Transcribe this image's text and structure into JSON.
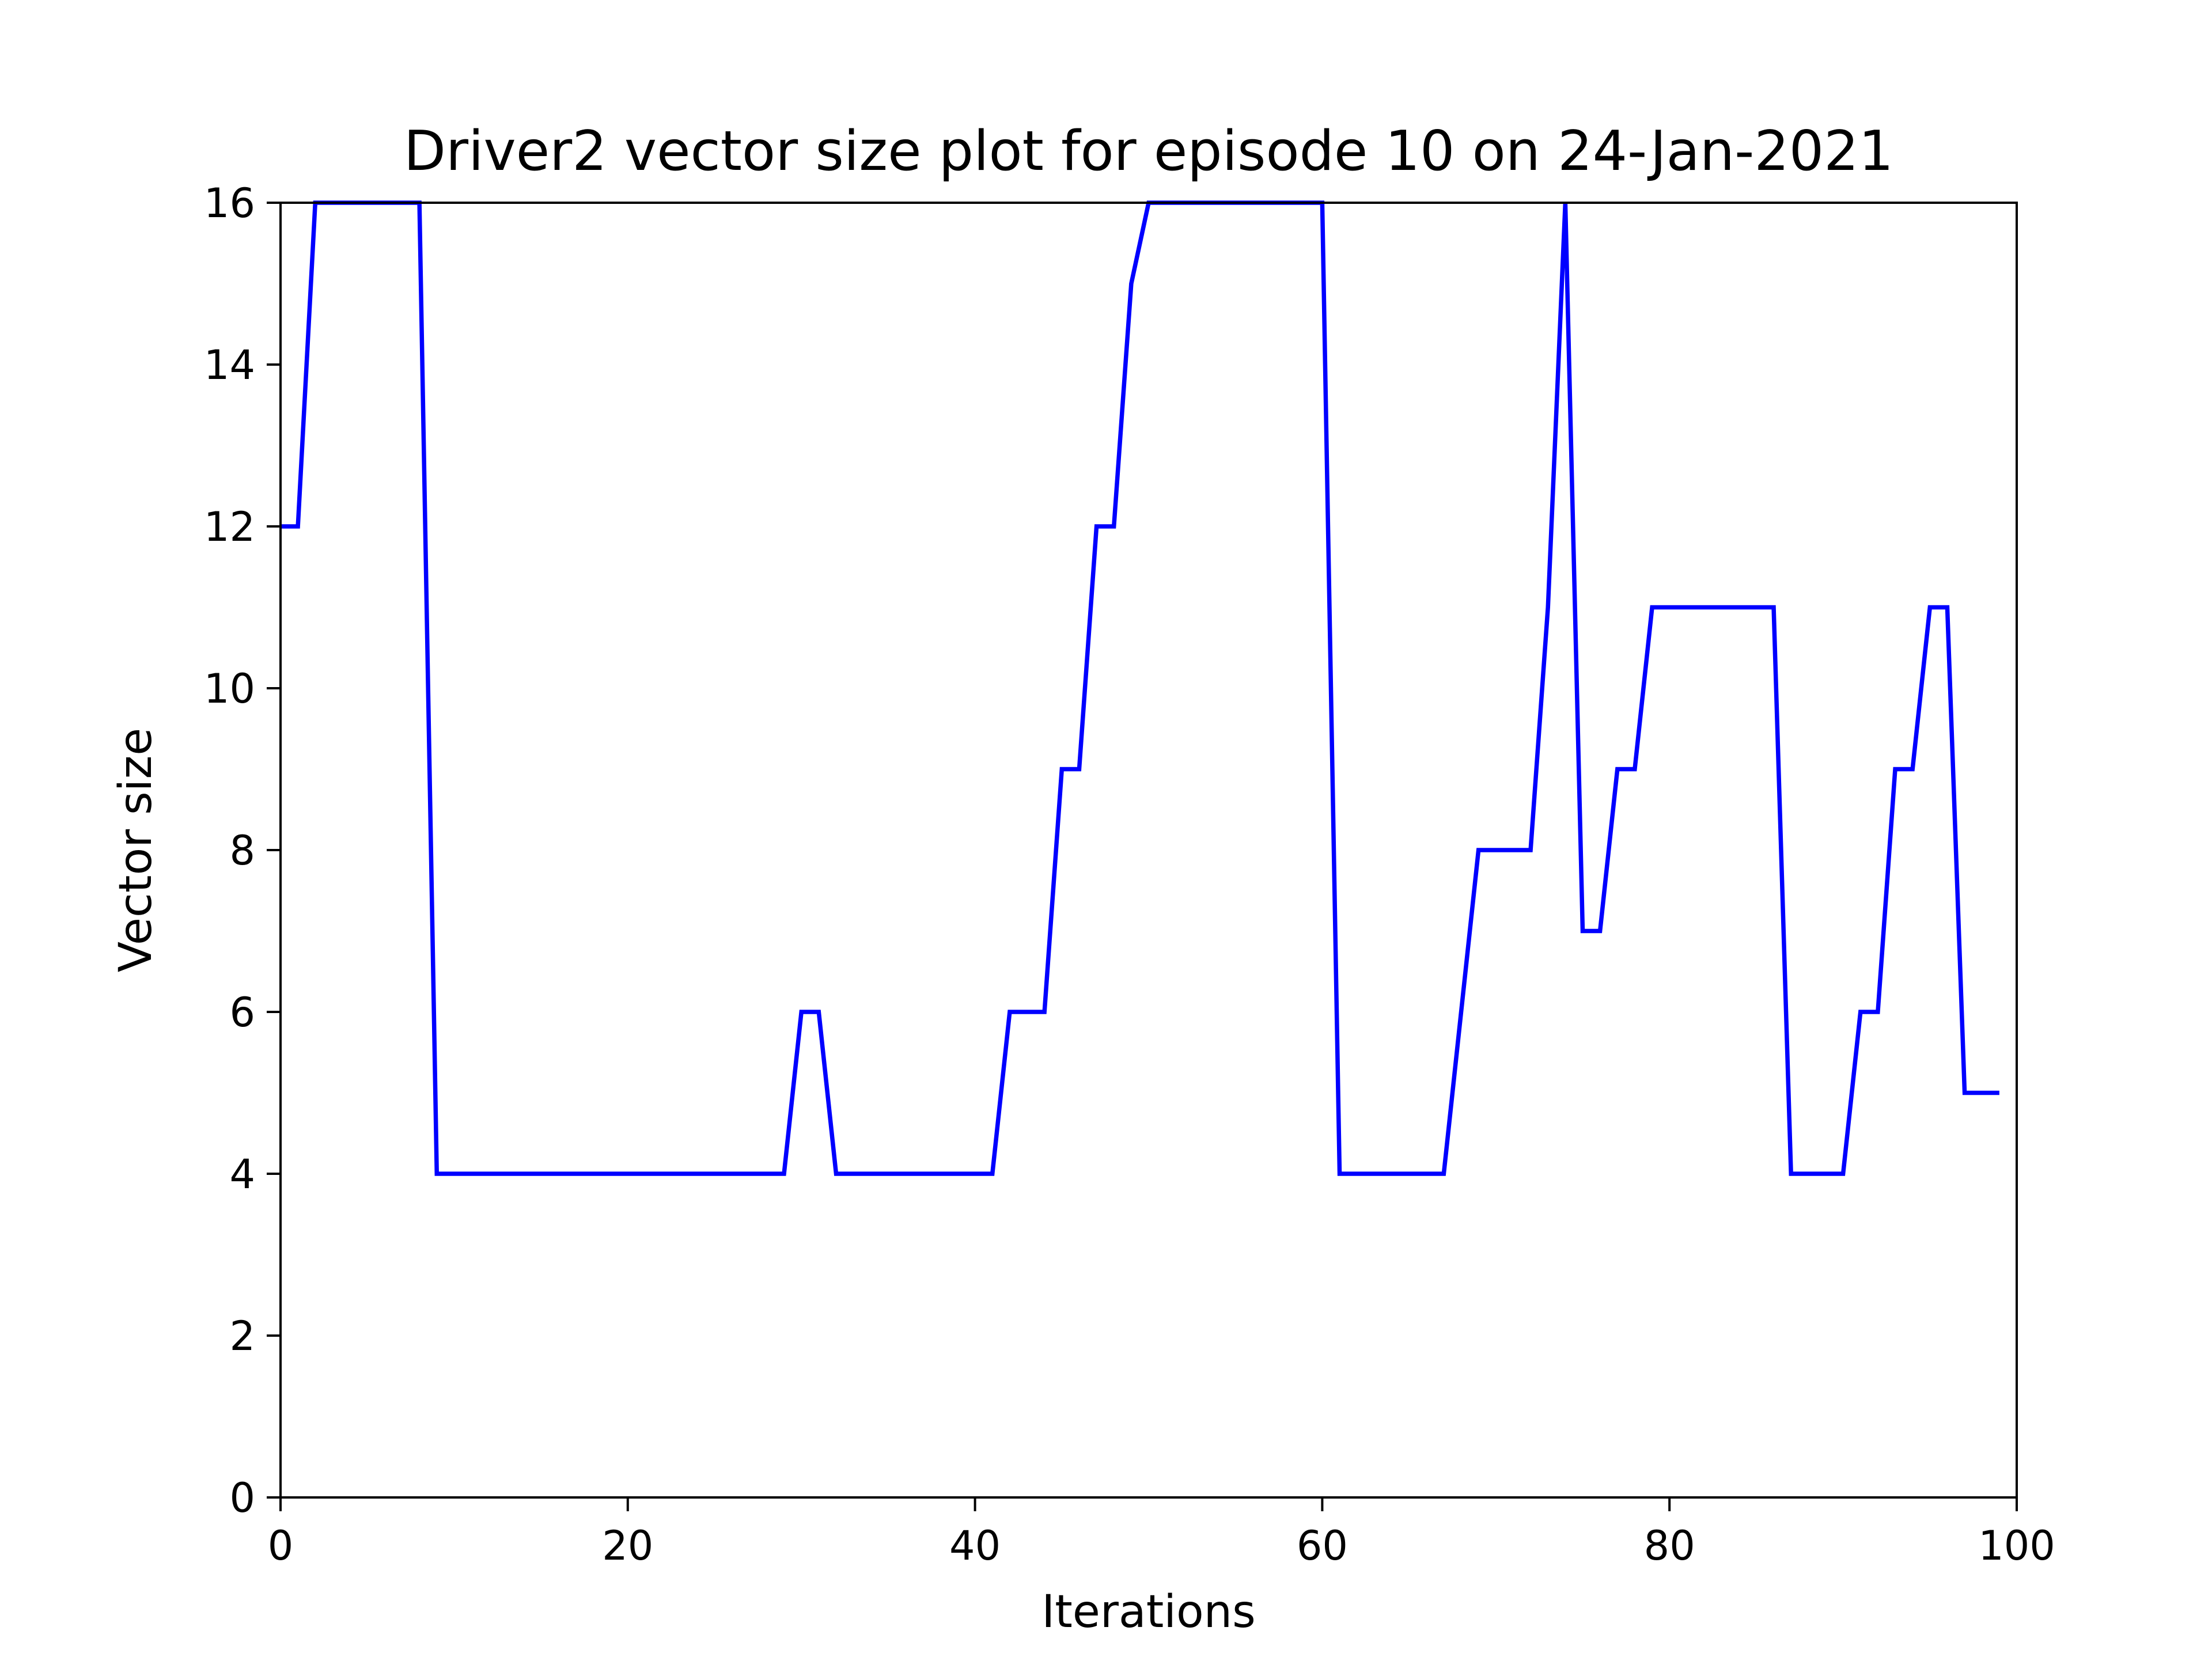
{
  "chart_data": {
    "type": "line",
    "title": "Driver2 vector size plot for episode 10 on 24-Jan-2021",
    "xlabel": "Iterations",
    "ylabel": "Vector size",
    "xlim": [
      0,
      100
    ],
    "ylim": [
      0,
      16
    ],
    "xticks": [
      0,
      20,
      40,
      60,
      80,
      100
    ],
    "yticks": [
      0,
      2,
      4,
      6,
      8,
      10,
      12,
      14,
      16
    ],
    "grid": false,
    "legend": "none",
    "line_color": "#0000ff",
    "series": [
      {
        "x": [
          0,
          1,
          2,
          3,
          4,
          5,
          6,
          7,
          8,
          9,
          10,
          11,
          12,
          13,
          14,
          15,
          16,
          17,
          18,
          19,
          20,
          21,
          22,
          23,
          24,
          25,
          26,
          27,
          28,
          29,
          30,
          31,
          32,
          33,
          34,
          35,
          36,
          37,
          38,
          39,
          40,
          41,
          42,
          43,
          44,
          45,
          46,
          47,
          48,
          49,
          50,
          51,
          52,
          53,
          54,
          55,
          56,
          57,
          58,
          59,
          60,
          61,
          62,
          63,
          64,
          65,
          66,
          67,
          68,
          69,
          70,
          71,
          72,
          73,
          74,
          75,
          76,
          77,
          78,
          79,
          80,
          81,
          82,
          83,
          84,
          85,
          86,
          87,
          88,
          89,
          90,
          91,
          92,
          93,
          94,
          95,
          96,
          97,
          98,
          99
        ],
        "values": [
          12,
          12,
          16,
          16,
          16,
          16,
          16,
          16,
          16,
          4,
          4,
          4,
          4,
          4,
          4,
          4,
          4,
          4,
          4,
          4,
          4,
          4,
          4,
          4,
          4,
          4,
          4,
          4,
          4,
          4,
          6,
          6,
          4,
          4,
          4,
          4,
          4,
          4,
          4,
          4,
          4,
          4,
          6,
          6,
          6,
          9,
          9,
          12,
          12,
          15,
          16,
          16,
          16,
          16,
          16,
          16,
          16,
          16,
          16,
          16,
          16,
          4,
          4,
          4,
          4,
          4,
          4,
          4,
          6,
          8,
          8,
          8,
          8,
          11,
          16,
          7,
          7,
          9,
          9,
          11,
          11,
          11,
          11,
          11,
          11,
          11,
          11,
          4,
          4,
          4,
          4,
          6,
          6,
          9,
          9,
          11,
          11,
          5,
          5,
          5
        ]
      }
    ]
  }
}
